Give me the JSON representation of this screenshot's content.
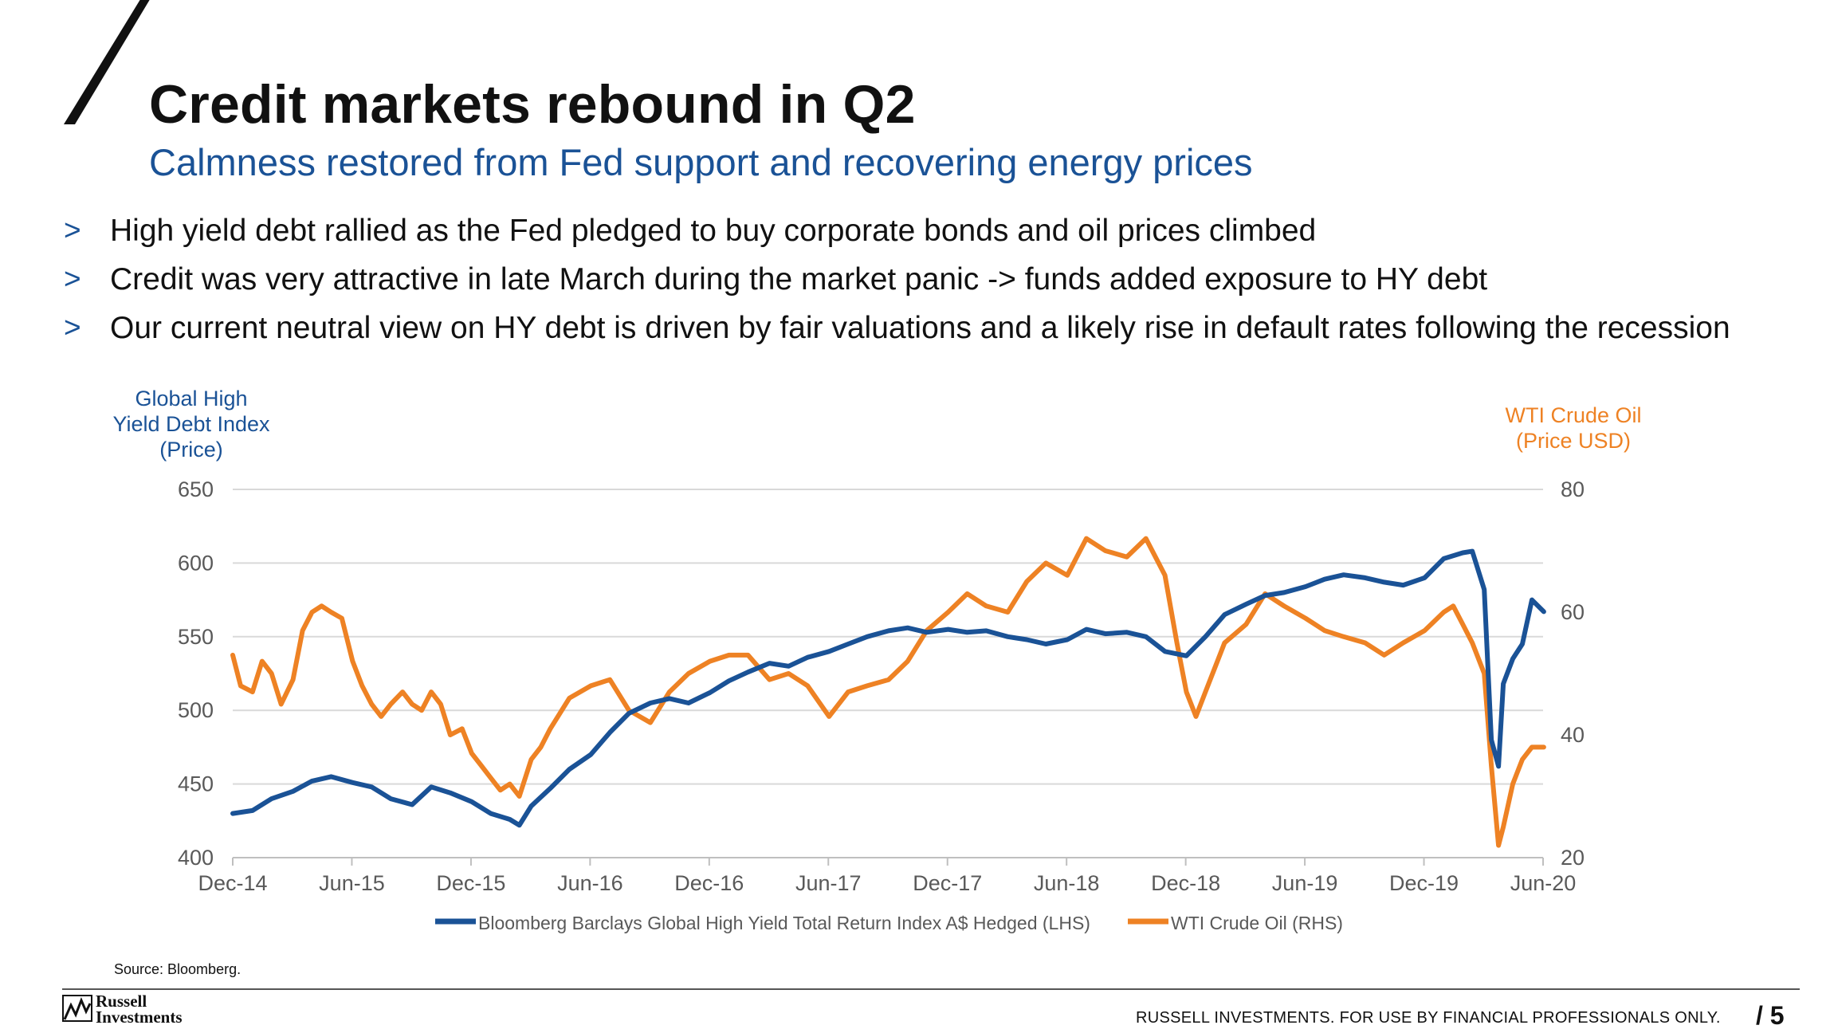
{
  "slide": {
    "title": "Credit markets rebound in Q2",
    "subtitle": "Calmness restored from Fed support and recovering energy prices",
    "bullet_marker": ">",
    "bullets": [
      "High yield debt rallied as the Fed pledged to buy corporate bonds and oil prices climbed",
      "Credit was very attractive in late March during the market panic -> funds added exposure to HY debt",
      "Our current neutral view on HY debt is driven by fair valuations and a likely rise in default rates following the recession"
    ]
  },
  "colors": {
    "title": "#111111",
    "accent": "#1a5296",
    "hy_series": "#1a5296",
    "oil_series": "#ee8224",
    "grid": "#d9d9d9",
    "axis_text": "#595959"
  },
  "chart_data": {
    "type": "line",
    "left_axis_title": [
      "Global High",
      "Yield Debt Index",
      "(Price)"
    ],
    "right_axis_title": [
      "WTI Crude Oil",
      "(Price USD)"
    ],
    "x_tick_labels": [
      "Dec-14",
      "Jun-15",
      "Dec-15",
      "Jun-16",
      "Dec-16",
      "Jun-17",
      "Dec-17",
      "Jun-18",
      "Dec-18",
      "Jun-19",
      "Dec-19",
      "Jun-20"
    ],
    "x_range": [
      2014.917,
      2020.417
    ],
    "y_left_ticks": [
      "650",
      "600",
      "550",
      "500",
      "450",
      "400"
    ],
    "ylim_left": [
      400,
      650
    ],
    "y_right_ticks": [
      "80",
      "60",
      "40",
      "20"
    ],
    "ylim_right": [
      20,
      80
    ],
    "grid": true,
    "legend_position": "bottom",
    "series": [
      {
        "name": "Bloomberg Barclays Global High Yield Total Return Index A$ Hedged (LHS)",
        "axis": "left",
        "x": [
          2014.917,
          2015.0,
          2015.08,
          2015.17,
          2015.25,
          2015.33,
          2015.42,
          2015.5,
          2015.58,
          2015.67,
          2015.75,
          2015.83,
          2015.92,
          2016.0,
          2016.08,
          2016.12,
          2016.17,
          2016.25,
          2016.33,
          2016.42,
          2016.5,
          2016.58,
          2016.67,
          2016.75,
          2016.83,
          2016.92,
          2017.0,
          2017.08,
          2017.17,
          2017.25,
          2017.33,
          2017.42,
          2017.5,
          2017.58,
          2017.67,
          2017.75,
          2017.83,
          2017.92,
          2018.0,
          2018.08,
          2018.17,
          2018.25,
          2018.33,
          2018.42,
          2018.5,
          2018.58,
          2018.67,
          2018.75,
          2018.83,
          2018.92,
          2019.0,
          2019.08,
          2019.17,
          2019.25,
          2019.33,
          2019.42,
          2019.5,
          2019.58,
          2019.67,
          2019.75,
          2019.83,
          2019.92,
          2020.0,
          2020.08,
          2020.12,
          2020.17,
          2020.2,
          2020.23,
          2020.25,
          2020.29,
          2020.33,
          2020.37,
          2020.42
        ],
        "values": [
          430,
          432,
          440,
          445,
          452,
          455,
          451,
          448,
          440,
          436,
          448,
          444,
          438,
          430,
          426,
          422,
          435,
          447,
          460,
          470,
          485,
          498,
          505,
          508,
          505,
          512,
          520,
          526,
          532,
          530,
          536,
          540,
          545,
          550,
          554,
          556,
          553,
          555,
          553,
          554,
          550,
          548,
          545,
          548,
          555,
          552,
          553,
          550,
          540,
          537,
          550,
          565,
          572,
          578,
          580,
          584,
          589,
          592,
          590,
          587,
          585,
          590,
          603,
          607,
          608,
          582,
          480,
          462,
          518,
          535,
          545,
          575,
          567
        ]
      },
      {
        "name": "WTI Crude Oil (RHS)",
        "axis": "right",
        "x": [
          2014.917,
          2014.95,
          2015.0,
          2015.04,
          2015.08,
          2015.12,
          2015.17,
          2015.21,
          2015.25,
          2015.29,
          2015.33,
          2015.375,
          2015.42,
          2015.46,
          2015.5,
          2015.54,
          2015.58,
          2015.63,
          2015.67,
          2015.71,
          2015.75,
          2015.79,
          2015.83,
          2015.88,
          2015.92,
          2015.96,
          2016.0,
          2016.04,
          2016.08,
          2016.12,
          2016.17,
          2016.21,
          2016.25,
          2016.33,
          2016.42,
          2016.5,
          2016.58,
          2016.67,
          2016.75,
          2016.83,
          2016.92,
          2017.0,
          2017.08,
          2017.17,
          2017.25,
          2017.33,
          2017.42,
          2017.5,
          2017.58,
          2017.67,
          2017.75,
          2017.83,
          2017.92,
          2018.0,
          2018.08,
          2018.17,
          2018.25,
          2018.33,
          2018.42,
          2018.5,
          2018.58,
          2018.67,
          2018.75,
          2018.83,
          2018.88,
          2018.92,
          2018.96,
          2019.0,
          2019.08,
          2019.17,
          2019.25,
          2019.33,
          2019.42,
          2019.5,
          2019.58,
          2019.67,
          2019.75,
          2019.83,
          2019.92,
          2020.0,
          2020.04,
          2020.08,
          2020.12,
          2020.17,
          2020.2,
          2020.23,
          2020.25,
          2020.29,
          2020.33,
          2020.37,
          2020.42
        ],
        "values": [
          53,
          48,
          47,
          52,
          50,
          45,
          49,
          57,
          60,
          61,
          60,
          59,
          52,
          48,
          45,
          43,
          45,
          47,
          45,
          44,
          47,
          45,
          40,
          41,
          37,
          35,
          33,
          31,
          32,
          30,
          36,
          38,
          41,
          46,
          48,
          49,
          44,
          42,
          47,
          50,
          52,
          53,
          53,
          49,
          50,
          48,
          43,
          47,
          48,
          49,
          52,
          57,
          60,
          63,
          61,
          60,
          65,
          68,
          66,
          72,
          70,
          69,
          72,
          66,
          55,
          47,
          43,
          47,
          55,
          58,
          63,
          61,
          59,
          57,
          56,
          55,
          53,
          55,
          57,
          60,
          61,
          58,
          55,
          50,
          35,
          22,
          25,
          32,
          36,
          38,
          38
        ]
      }
    ]
  },
  "source": "Source: Bloomberg.",
  "footer": {
    "logo_line1": "Russell",
    "logo_line2": "Investments",
    "disclaimer": "RUSSELL INVESTMENTS.  FOR USE BY FINANCIAL PROFESSIONALS ONLY.",
    "page_number": "/ 5"
  }
}
